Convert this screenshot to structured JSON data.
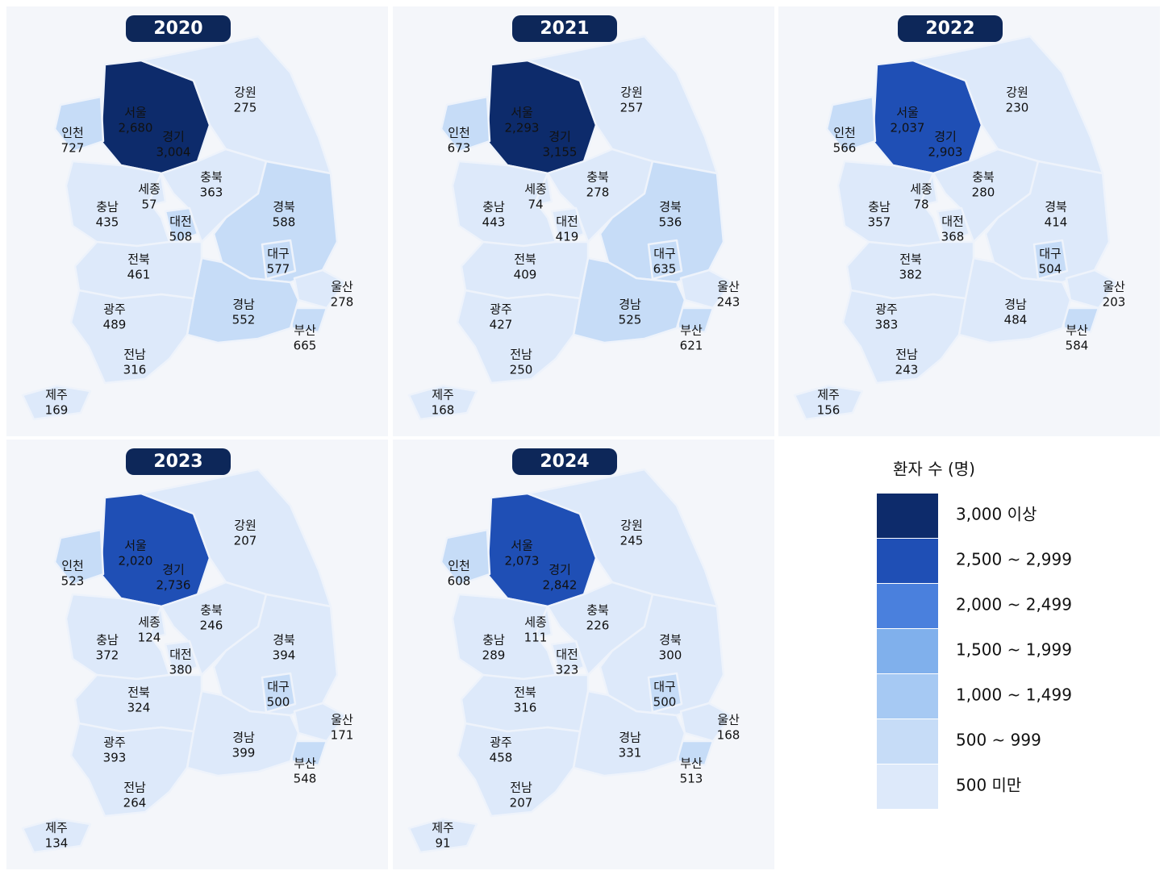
{
  "regions": [
    "서울",
    "경기",
    "인천",
    "강원",
    "충북",
    "세종",
    "충남",
    "대전",
    "경북",
    "대구",
    "울산",
    "부산",
    "경남",
    "전북",
    "광주",
    "전남",
    "제주"
  ],
  "maps": [
    {
      "year": "2020",
      "values": [
        2680,
        3004,
        727,
        275,
        363,
        57,
        435,
        508,
        588,
        577,
        278,
        665,
        552,
        461,
        489,
        316,
        169
      ],
      "value_labels": [
        "2,680",
        "3,004",
        "727",
        "275",
        "363",
        "57",
        "435",
        "508",
        "588",
        "577",
        "278",
        "665",
        "552",
        "461",
        "489",
        "316",
        "169"
      ]
    },
    {
      "year": "2021",
      "values": [
        2293,
        3155,
        673,
        257,
        278,
        74,
        443,
        419,
        536,
        635,
        243,
        621,
        525,
        409,
        427,
        250,
        168
      ],
      "value_labels": [
        "2,293",
        "3,155",
        "673",
        "257",
        "278",
        "74",
        "443",
        "419",
        "536",
        "635",
        "243",
        "621",
        "525",
        "409",
        "427",
        "250",
        "168"
      ]
    },
    {
      "year": "2022",
      "values": [
        2037,
        2903,
        566,
        230,
        280,
        78,
        357,
        368,
        414,
        504,
        203,
        584,
        484,
        382,
        383,
        243,
        156
      ],
      "value_labels": [
        "2,037",
        "2,903",
        "566",
        "230",
        "280",
        "78",
        "357",
        "368",
        "414",
        "504",
        "203",
        "584",
        "484",
        "382",
        "383",
        "243",
        "156"
      ]
    },
    {
      "year": "2023",
      "values": [
        2020,
        2736,
        523,
        207,
        246,
        124,
        372,
        380,
        394,
        500,
        171,
        548,
        399,
        324,
        393,
        264,
        134
      ],
      "value_labels": [
        "2,020",
        "2,736",
        "523",
        "207",
        "246",
        "124",
        "372",
        "380",
        "394",
        "500",
        "171",
        "548",
        "399",
        "324",
        "393",
        "264",
        "134"
      ]
    },
    {
      "year": "2024",
      "values": [
        2073,
        2842,
        608,
        245,
        226,
        111,
        289,
        323,
        300,
        500,
        168,
        513,
        331,
        316,
        458,
        207,
        91
      ],
      "value_labels": [
        "2,073",
        "2,842",
        "608",
        "245",
        "226",
        "111",
        "289",
        "323",
        "300",
        "500",
        "168",
        "513",
        "331",
        "316",
        "458",
        "207",
        "91"
      ]
    }
  ],
  "legend": {
    "title": "환자 수 (명)",
    "bins": [
      {
        "label": "3,000 이상",
        "min": 3000,
        "color": "#0d2b6b"
      },
      {
        "label": "2,500 ~ 2,999",
        "min": 2500,
        "color": "#1f4fb5"
      },
      {
        "label": "2,000 ~ 2,499",
        "min": 2000,
        "color": "#4a80dd"
      },
      {
        "label": "1,500 ~ 1,999",
        "min": 1500,
        "color": "#80b0ec"
      },
      {
        "label": "1,000 ~ 1,499",
        "min": 1000,
        "color": "#a6c9f3"
      },
      {
        "label": "500 ~ 999",
        "min": 500,
        "color": "#c6dcf7"
      },
      {
        "label": "500 미만",
        "min": 0,
        "color": "#dde9fa"
      }
    ]
  }
}
